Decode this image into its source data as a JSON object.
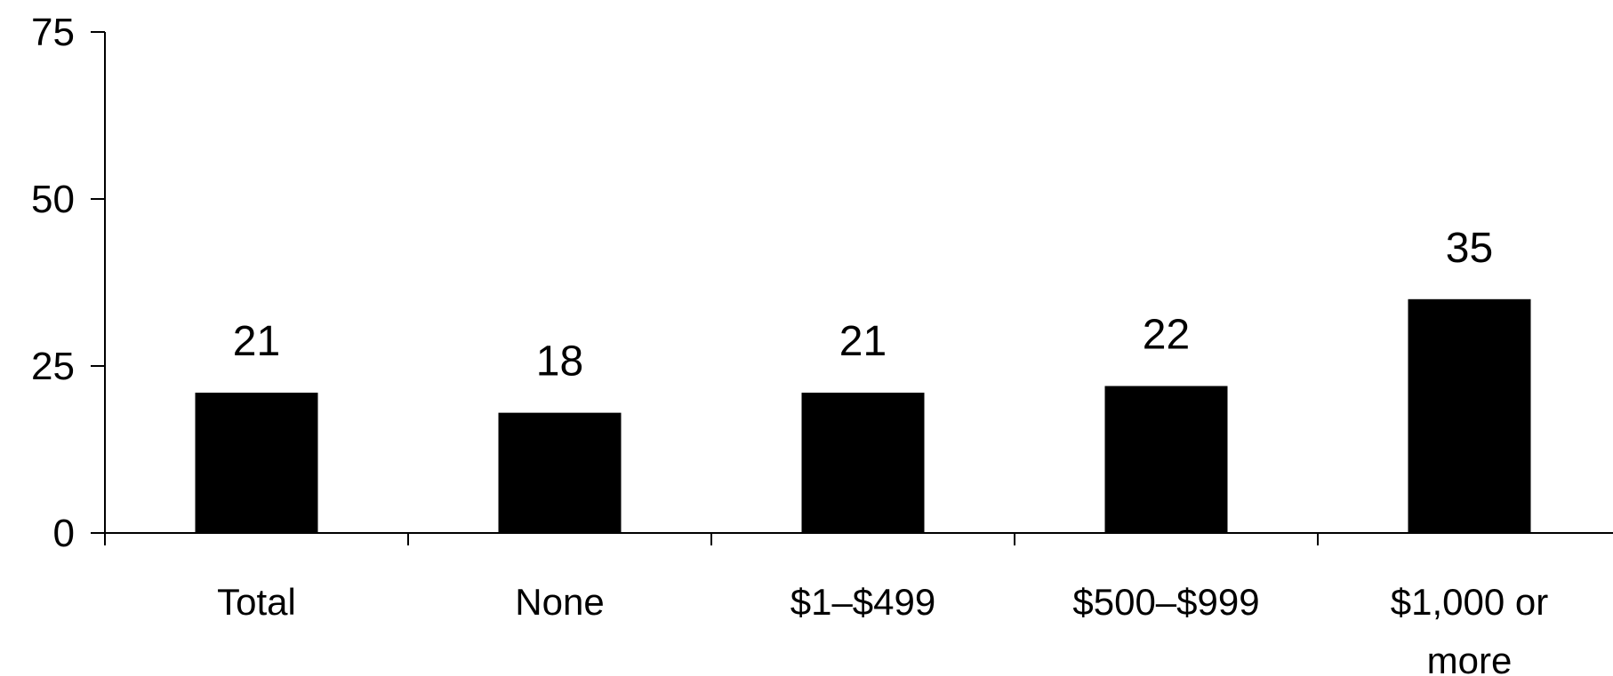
{
  "chart_data": {
    "type": "bar",
    "title": "",
    "xlabel": "",
    "ylabel": "",
    "categories": [
      "Total",
      "None",
      "$1–$499",
      "$500–$999",
      "$1,000 or more"
    ],
    "category_lines": [
      [
        "Total"
      ],
      [
        "None"
      ],
      [
        "$1–$499"
      ],
      [
        "$500–$999"
      ],
      [
        "$1,000 or",
        "more"
      ]
    ],
    "values": [
      21,
      18,
      21,
      22,
      35
    ],
    "data_labels": [
      "21",
      "18",
      "21",
      "22",
      "35"
    ],
    "ylim": [
      0,
      75
    ],
    "yticks": [
      0,
      25,
      50,
      75
    ],
    "ytick_labels": [
      "0",
      "25",
      "50",
      "75"
    ],
    "grid": false,
    "legend": "none",
    "bar_color": "#000000",
    "axis_color": "#000000"
  }
}
